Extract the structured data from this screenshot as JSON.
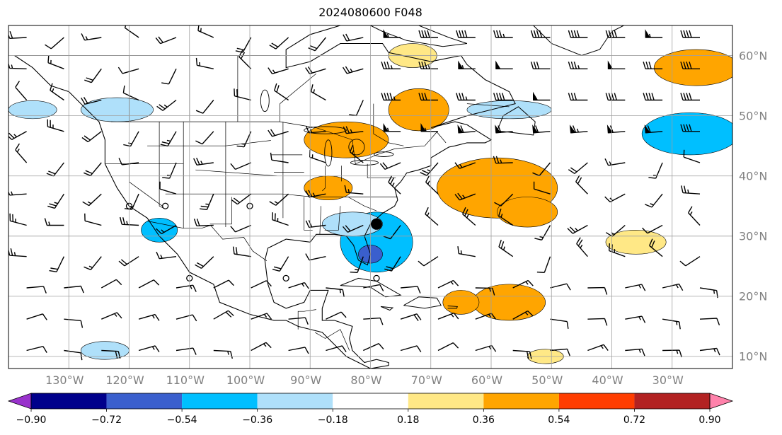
{
  "title": "2024080600 F048",
  "map": {
    "lon_range": [
      -140,
      -20
    ],
    "lat_range": [
      8,
      65
    ],
    "grid": true,
    "lon_ticks": [
      {
        "value": -130,
        "label": "130°W"
      },
      {
        "value": -120,
        "label": "120°W"
      },
      {
        "value": -110,
        "label": "110°W"
      },
      {
        "value": -100,
        "label": "100°W"
      },
      {
        "value": -90,
        "label": "90°W"
      },
      {
        "value": -80,
        "label": "80°W"
      },
      {
        "value": -70,
        "label": "70°W"
      },
      {
        "value": -60,
        "label": "60°W"
      },
      {
        "value": -50,
        "label": "50°W"
      },
      {
        "value": -40,
        "label": "40°W"
      },
      {
        "value": -30,
        "label": "30°W"
      }
    ],
    "lat_ticks": [
      {
        "value": 60,
        "label": "60°N"
      },
      {
        "value": 50,
        "label": "50°N"
      },
      {
        "value": 40,
        "label": "40°N"
      },
      {
        "value": 30,
        "label": "30°N"
      },
      {
        "value": 20,
        "label": "20°N"
      },
      {
        "value": 10,
        "label": "10°N"
      }
    ],
    "storm_center": {
      "lon": -79,
      "lat": 32
    },
    "colors": {
      "land_line": "#000000",
      "grid_line": "#a0a0a0",
      "barb": "#000000"
    }
  },
  "colorbar": {
    "extend": "both",
    "levels": [
      -0.9,
      -0.72,
      -0.54,
      -0.36,
      -0.18,
      0.18,
      0.36,
      0.54,
      0.72,
      0.9
    ],
    "labels": [
      "−0.90",
      "−0.72",
      "−0.54",
      "−0.36",
      "−0.18",
      "0.18",
      "0.36",
      "0.54",
      "0.72",
      "0.90"
    ],
    "colors": [
      "#9932cc",
      "#00008b",
      "#3a5fcd",
      "#00bfff",
      "#afe0fa",
      "#ffffff",
      "#ffe886",
      "#ffa500",
      "#ff3d00",
      "#b22222",
      "#ff82ab"
    ]
  },
  "anomalies": [
    {
      "lon": -59,
      "lat": 38,
      "r_lon": 10,
      "r_lat": 5,
      "value": 0.45
    },
    {
      "lon": -54,
      "lat": 34,
      "r_lon": 5,
      "r_lat": 2.5,
      "value": 0.45
    },
    {
      "lon": -72,
      "lat": 51,
      "r_lon": 5,
      "r_lat": 3.5,
      "value": 0.45
    },
    {
      "lon": -84,
      "lat": 46,
      "r_lon": 7,
      "r_lat": 3,
      "value": 0.45
    },
    {
      "lon": -87,
      "lat": 38,
      "r_lon": 4,
      "r_lat": 2,
      "value": 0.45
    },
    {
      "lon": -73,
      "lat": 60,
      "r_lon": 4,
      "r_lat": 2,
      "value": 0.27
    },
    {
      "lon": -26,
      "lat": 58,
      "r_lon": 7,
      "r_lat": 3,
      "value": 0.45
    },
    {
      "lon": -57,
      "lat": 19,
      "r_lon": 6,
      "r_lat": 3,
      "value": 0.45
    },
    {
      "lon": -65,
      "lat": 19,
      "r_lon": 3,
      "r_lat": 2,
      "value": 0.45
    },
    {
      "lon": -51,
      "lat": 10,
      "r_lon": 3,
      "r_lat": 1.2,
      "value": 0.27
    },
    {
      "lon": -36,
      "lat": 29,
      "r_lon": 5,
      "r_lat": 2,
      "value": 0.27
    },
    {
      "lon": -79,
      "lat": 29,
      "r_lon": 6,
      "r_lat": 5,
      "value": -0.45
    },
    {
      "lon": -80,
      "lat": 27,
      "r_lon": 2,
      "r_lat": 1.5,
      "value": -0.63
    },
    {
      "lon": -83,
      "lat": 32,
      "r_lon": 5,
      "r_lat": 2,
      "value": -0.27
    },
    {
      "lon": -27,
      "lat": 47,
      "r_lon": 8,
      "r_lat": 3.5,
      "value": -0.45
    },
    {
      "lon": -57,
      "lat": 51,
      "r_lon": 7,
      "r_lat": 1.5,
      "value": -0.27
    },
    {
      "lon": -115,
      "lat": 31,
      "r_lon": 3,
      "r_lat": 2,
      "value": -0.45
    },
    {
      "lon": -122,
      "lat": 51,
      "r_lon": 6,
      "r_lat": 2,
      "value": -0.27
    },
    {
      "lon": -136,
      "lat": 51,
      "r_lon": 4,
      "r_lat": 1.5,
      "value": -0.27
    },
    {
      "lon": -124,
      "lat": 11,
      "r_lon": 4,
      "r_lat": 1.5,
      "value": -0.27
    }
  ]
}
